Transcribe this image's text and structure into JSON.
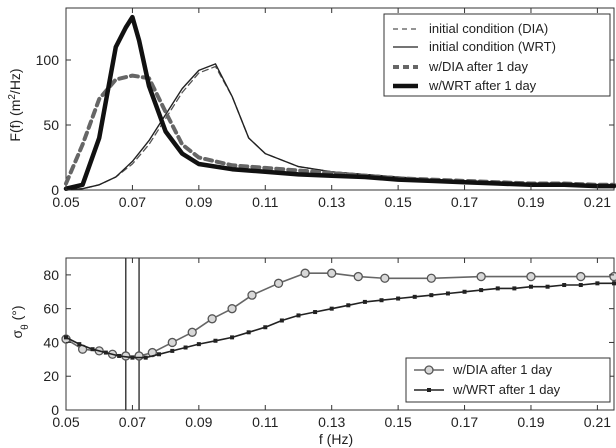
{
  "chart_data": [
    {
      "type": "line",
      "ylabel_main": "F(f) (m",
      "ylabel_sup": "2",
      "ylabel_tail": "/Hz)",
      "xlim": [
        0.05,
        0.215
      ],
      "ylim": [
        0,
        140
      ],
      "xticks": [
        "0.05",
        "0.07",
        "0.09",
        "0.11",
        "0.13",
        "0.15",
        "0.17",
        "0.19",
        "0.21"
      ],
      "xtick_values": [
        0.05,
        0.07,
        0.09,
        0.11,
        0.13,
        0.15,
        0.17,
        0.19,
        0.21
      ],
      "yticks": [
        "0",
        "50",
        "100"
      ],
      "ytick_values": [
        0,
        50,
        100
      ],
      "grid": false,
      "legend_position": "top-right",
      "legend": [
        "initial condition (DIA)",
        "initial condition (WRT)",
        "w/DIA after 1 day",
        "w/WRT after 1 day"
      ],
      "series": [
        {
          "name": "initial condition (DIA)",
          "style": "thin-dashed",
          "color": "#555555",
          "x": [
            0.05,
            0.055,
            0.06,
            0.065,
            0.07,
            0.075,
            0.08,
            0.085,
            0.09,
            0.095,
            0.1,
            0.105,
            0.11,
            0.12,
            0.13,
            0.14,
            0.15,
            0.16,
            0.17,
            0.18,
            0.19,
            0.2,
            0.21,
            0.215
          ],
          "y": [
            0,
            1,
            4,
            10,
            20,
            35,
            55,
            75,
            90,
            95,
            72,
            40,
            28,
            18,
            14,
            12,
            10,
            8,
            6,
            5,
            4,
            4,
            3,
            3
          ]
        },
        {
          "name": "initial condition (WRT)",
          "style": "thin-solid",
          "color": "#222222",
          "x": [
            0.05,
            0.055,
            0.06,
            0.065,
            0.07,
            0.075,
            0.08,
            0.085,
            0.09,
            0.095,
            0.1,
            0.105,
            0.11,
            0.12,
            0.13,
            0.14,
            0.15,
            0.16,
            0.17,
            0.18,
            0.19,
            0.2,
            0.21,
            0.215
          ],
          "y": [
            0,
            1,
            4,
            10,
            22,
            38,
            58,
            78,
            92,
            97,
            72,
            40,
            28,
            18,
            14,
            12,
            10,
            8,
            6,
            5,
            4,
            4,
            3,
            3
          ]
        },
        {
          "name": "w/DIA after 1 day",
          "style": "thick-dashed",
          "color": "#666666",
          "x": [
            0.05,
            0.055,
            0.06,
            0.065,
            0.07,
            0.075,
            0.08,
            0.085,
            0.09,
            0.1,
            0.11,
            0.12,
            0.13,
            0.14,
            0.15,
            0.16,
            0.17,
            0.18,
            0.19,
            0.2,
            0.21,
            0.215
          ],
          "y": [
            5,
            35,
            70,
            85,
            88,
            86,
            60,
            35,
            25,
            19,
            17,
            15,
            13,
            11,
            9,
            8,
            7,
            6,
            5,
            5,
            4,
            4
          ]
        },
        {
          "name": "w/WRT after 1 day",
          "style": "thick-solid",
          "color": "#111111",
          "x": [
            0.05,
            0.055,
            0.06,
            0.065,
            0.068,
            0.07,
            0.072,
            0.075,
            0.08,
            0.085,
            0.09,
            0.1,
            0.11,
            0.12,
            0.13,
            0.14,
            0.15,
            0.16,
            0.17,
            0.18,
            0.19,
            0.2,
            0.21,
            0.215
          ],
          "y": [
            1,
            4,
            40,
            110,
            125,
            133,
            115,
            80,
            45,
            28,
            20,
            16,
            14,
            12,
            11,
            10,
            8,
            7,
            6,
            5,
            4,
            4,
            3,
            3
          ]
        }
      ]
    },
    {
      "type": "line",
      "xlabel": "f (Hz)",
      "ylabel_main": "σ",
      "ylabel_sub": "θ",
      "ylabel_tail": " (°)",
      "xlim": [
        0.05,
        0.215
      ],
      "ylim": [
        0,
        90
      ],
      "xticks": [
        "0.05",
        "0.07",
        "0.09",
        "0.11",
        "0.13",
        "0.15",
        "0.17",
        "0.19",
        "0.21"
      ],
      "xtick_values": [
        0.05,
        0.07,
        0.09,
        0.11,
        0.13,
        0.15,
        0.17,
        0.19,
        0.21
      ],
      "yticks": [
        "0",
        "20",
        "40",
        "60",
        "80"
      ],
      "ytick_values": [
        0,
        20,
        40,
        60,
        80
      ],
      "vlines": [
        0.068,
        0.072
      ],
      "grid": false,
      "legend_position": "bottom-right",
      "legend": [
        "w/DIA after 1 day",
        "w/WRT after 1 day"
      ],
      "series": [
        {
          "name": "w/DIA after 1 day",
          "marker": "circle",
          "color": "#666666",
          "x": [
            0.05,
            0.055,
            0.06,
            0.064,
            0.068,
            0.072,
            0.076,
            0.082,
            0.088,
            0.094,
            0.1,
            0.106,
            0.114,
            0.122,
            0.13,
            0.138,
            0.146,
            0.16,
            0.175,
            0.19,
            0.205,
            0.215
          ],
          "y": [
            42,
            36,
            35,
            33,
            32,
            32,
            34,
            40,
            46,
            54,
            60,
            68,
            75,
            81,
            81,
            79,
            78,
            78,
            79,
            79,
            79,
            79
          ]
        },
        {
          "name": "w/WRT after 1 day",
          "marker": "square",
          "color": "#222222",
          "x": [
            0.05,
            0.054,
            0.058,
            0.062,
            0.066,
            0.07,
            0.074,
            0.078,
            0.082,
            0.086,
            0.09,
            0.095,
            0.1,
            0.105,
            0.11,
            0.115,
            0.12,
            0.125,
            0.13,
            0.135,
            0.14,
            0.145,
            0.15,
            0.155,
            0.16,
            0.165,
            0.17,
            0.175,
            0.18,
            0.185,
            0.19,
            0.195,
            0.2,
            0.205,
            0.21,
            0.215
          ],
          "y": [
            43,
            39,
            36,
            34,
            32,
            31,
            31,
            33,
            35,
            37,
            39,
            41,
            43,
            46,
            49,
            53,
            56,
            58,
            60,
            62,
            64,
            65,
            66,
            67,
            68,
            69,
            70,
            71,
            72,
            72,
            73,
            73,
            74,
            74,
            75,
            75
          ]
        }
      ]
    }
  ]
}
